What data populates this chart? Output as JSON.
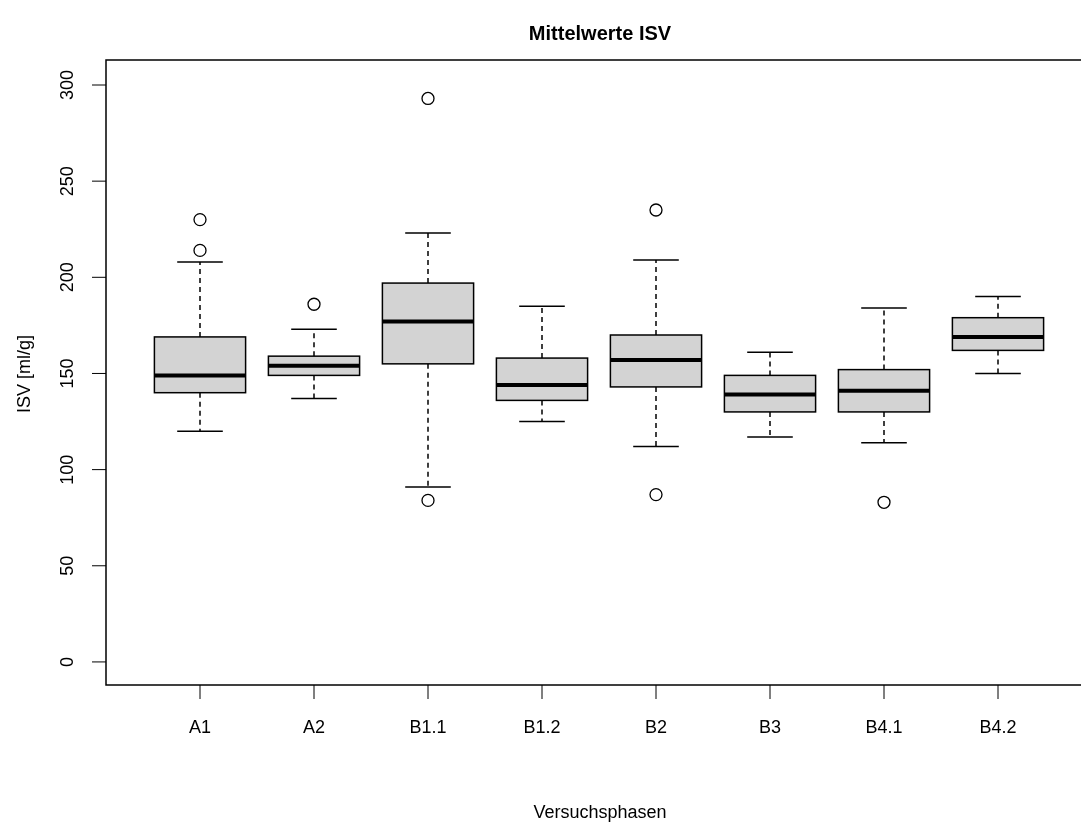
{
  "chart_data": {
    "type": "box",
    "title": "Mittelwerte ISV",
    "xlabel": "Versuchsphasen",
    "ylabel": "ISV [ml/g]",
    "categories": [
      "A1",
      "A2",
      "B1.1",
      "B1.2",
      "B2",
      "B3",
      "B4.1",
      "B4.2"
    ],
    "color": "#d3d3d3",
    "boxes": [
      {
        "low": 120,
        "q1": 140,
        "median": 149,
        "q3": 169,
        "high": 208,
        "outliers": [
          230,
          214
        ]
      },
      {
        "low": 137,
        "q1": 149,
        "median": 154,
        "q3": 159,
        "high": 173,
        "outliers": [
          186
        ]
      },
      {
        "low": 91,
        "q1": 155,
        "median": 177,
        "q3": 197,
        "high": 223,
        "outliers": [
          293,
          84
        ]
      },
      {
        "low": 125,
        "q1": 136,
        "median": 144,
        "q3": 158,
        "high": 185
      },
      {
        "low": 112,
        "q1": 143,
        "median": 157,
        "q3": 170,
        "high": 209,
        "outliers": [
          235,
          87
        ]
      },
      {
        "low": 117,
        "q1": 130,
        "median": 139,
        "q3": 149,
        "high": 161
      },
      {
        "low": 114,
        "q1": 130,
        "median": 141,
        "q3": 152,
        "high": 184,
        "outliers": [
          83
        ]
      },
      {
        "low": 150,
        "q1": 162,
        "median": 169,
        "q3": 179,
        "high": 190
      }
    ],
    "ylim": [
      -12,
      313
    ],
    "yticks": [
      0,
      50,
      100,
      150,
      200,
      250,
      300
    ]
  }
}
